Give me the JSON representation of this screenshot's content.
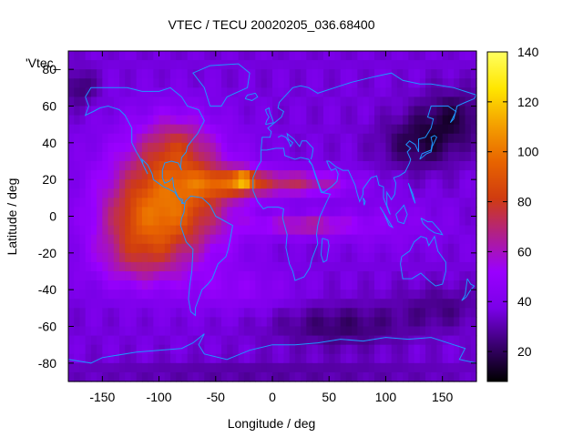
{
  "chart_data": {
    "type": "heatmap",
    "title": "VTEC / TECU 20020205_036.68400",
    "xlabel": "Longitude / deg",
    "ylabel": "Latitude / deg",
    "key_label": "'Vtec_",
    "xlim": [
      -180,
      180
    ],
    "ylim": [
      -90,
      90
    ],
    "xticks": [
      -150,
      -100,
      -50,
      0,
      50,
      100,
      150
    ],
    "yticks": [
      -80,
      -60,
      -40,
      -20,
      0,
      20,
      40,
      60,
      80
    ],
    "colorbar": {
      "range": [
        8,
        140
      ],
      "ticks": [
        20,
        40,
        60,
        80,
        100,
        120,
        140
      ]
    },
    "grid": false,
    "colormap": [
      "#000000",
      "#3a0070",
      "#7a00e8",
      "#9a00ff",
      "#b0208c",
      "#d03c10",
      "#e86400",
      "#f4a000",
      "#ffe600",
      "#ffff60"
    ],
    "coastline_color": "#1e96ff",
    "background_vtec": 36,
    "features": [
      {
        "lon": -90,
        "lat": 10,
        "slon": 55,
        "slat": 32,
        "amp": 56
      },
      {
        "lon": -115,
        "lat": -5,
        "slon": 40,
        "slat": 18,
        "amp": 18
      },
      {
        "lon": -85,
        "lat": 40,
        "slon": 30,
        "slat": 16,
        "amp": 20
      },
      {
        "lon": -40,
        "lat": 18,
        "slon": 35,
        "slat": 8,
        "amp": 28
      },
      {
        "lon": -25,
        "lat": 20,
        "slon": 8,
        "slat": 5,
        "amp": 42
      },
      {
        "lon": 20,
        "lat": 18,
        "slon": 50,
        "slat": 7,
        "amp": 32
      },
      {
        "lon": 30,
        "lat": -5,
        "slon": 42,
        "slat": 6,
        "amp": 28
      },
      {
        "lon": -120,
        "lat": -25,
        "slon": 40,
        "slat": 15,
        "amp": 20
      },
      {
        "lon": -30,
        "lat": -40,
        "slon": 50,
        "slat": 12,
        "amp": 10
      },
      {
        "lon": 100,
        "lat": -5,
        "slon": 50,
        "slat": 14,
        "amp": 8
      },
      {
        "lon": 130,
        "lat": 40,
        "slon": 35,
        "slat": 15,
        "amp": -18
      },
      {
        "lon": 160,
        "lat": 55,
        "slon": 30,
        "slat": 15,
        "amp": -16
      },
      {
        "lon": 60,
        "lat": -60,
        "slon": 60,
        "slat": 12,
        "amp": -14
      },
      {
        "lon": 150,
        "lat": -50,
        "slon": 40,
        "slat": 12,
        "amp": -10
      },
      {
        "lon": -170,
        "lat": 70,
        "slon": 15,
        "slat": 10,
        "amp": -14
      },
      {
        "lon": 0,
        "lat": -85,
        "slon": 200,
        "slat": 6,
        "amp": -8
      }
    ],
    "coastlines": [
      [
        [
          -165,
          65
        ],
        [
          -160,
          70
        ],
        [
          -140,
          70
        ],
        [
          -128,
          70
        ],
        [
          -115,
          68
        ],
        [
          -100,
          68
        ],
        [
          -90,
          70
        ],
        [
          -80,
          65
        ],
        [
          -75,
          60
        ],
        [
          -65,
          58
        ],
        [
          -60,
          52
        ],
        [
          -66,
          45
        ],
        [
          -70,
          42
        ],
        [
          -75,
          38
        ],
        [
          -76,
          35
        ],
        [
          -80,
          32
        ],
        [
          -81,
          27
        ],
        [
          -80,
          25
        ],
        [
          -83,
          29
        ],
        [
          -89,
          30
        ],
        [
          -95,
          29
        ],
        [
          -97,
          25
        ],
        [
          -97,
          21
        ],
        [
          -95,
          18
        ],
        [
          -91,
          19
        ],
        [
          -88,
          21
        ],
        [
          -87,
          16
        ],
        [
          -83,
          10
        ],
        [
          -79,
          9
        ],
        [
          -80,
          7
        ],
        [
          -78,
          7
        ],
        [
          -82,
          9
        ],
        [
          -86,
          13
        ],
        [
          -92,
          15
        ],
        [
          -96,
          16
        ],
        [
          -105,
          20
        ],
        [
          -106,
          23
        ],
        [
          -110,
          28
        ],
        [
          -115,
          31
        ],
        [
          -114,
          28
        ],
        [
          -110,
          23
        ],
        [
          -117,
          32
        ],
        [
          -120,
          35
        ],
        [
          -124,
          40
        ],
        [
          -124,
          48
        ],
        [
          -130,
          55
        ],
        [
          -135,
          58
        ],
        [
          -145,
          60
        ],
        [
          -152,
          59
        ],
        [
          -158,
          57
        ],
        [
          -165,
          55
        ],
        [
          -162,
          60
        ],
        [
          -165,
          65
        ]
      ],
      [
        [
          -77,
          8
        ],
        [
          -72,
          11
        ],
        [
          -62,
          10
        ],
        [
          -55,
          6
        ],
        [
          -50,
          0
        ],
        [
          -44,
          -2
        ],
        [
          -35,
          -5
        ],
        [
          -37,
          -12
        ],
        [
          -39,
          -18
        ],
        [
          -41,
          -22
        ],
        [
          -48,
          -26
        ],
        [
          -53,
          -34
        ],
        [
          -57,
          -37
        ],
        [
          -62,
          -40
        ],
        [
          -65,
          -45
        ],
        [
          -68,
          -50
        ],
        [
          -68,
          -54
        ],
        [
          -72,
          -52
        ],
        [
          -74,
          -45
        ],
        [
          -73,
          -38
        ],
        [
          -71,
          -30
        ],
        [
          -70,
          -18
        ],
        [
          -76,
          -14
        ],
        [
          -81,
          -5
        ],
        [
          -80,
          -1
        ],
        [
          -78,
          2
        ],
        [
          -77,
          8
        ]
      ],
      [
        [
          -55,
          60
        ],
        [
          -45,
          60
        ],
        [
          -40,
          65
        ],
        [
          -22,
          70
        ],
        [
          -20,
          78
        ],
        [
          -30,
          83
        ],
        [
          -55,
          82
        ],
        [
          -70,
          78
        ],
        [
          -60,
          70
        ],
        [
          -55,
          60
        ]
      ],
      [
        [
          -10,
          36
        ],
        [
          -9,
          43
        ],
        [
          -2,
          43
        ],
        [
          -1,
          46
        ],
        [
          -4,
          48
        ],
        [
          2,
          51
        ],
        [
          8,
          54
        ],
        [
          10,
          57
        ],
        [
          5,
          59
        ],
        [
          6,
          62
        ],
        [
          12,
          66
        ],
        [
          18,
          70
        ],
        [
          25,
          71
        ],
        [
          32,
          70
        ],
        [
          40,
          67
        ],
        [
          45,
          68
        ],
        [
          55,
          70
        ],
        [
          70,
          73
        ],
        [
          90,
          76
        ],
        [
          105,
          78
        ],
        [
          115,
          74
        ],
        [
          130,
          72
        ],
        [
          140,
          72
        ],
        [
          160,
          70
        ],
        [
          170,
          68
        ],
        [
          180,
          66
        ]
      ],
      [
        [
          -10,
          36
        ],
        [
          -5,
          36
        ],
        [
          3,
          37
        ],
        [
          10,
          37
        ],
        [
          11,
          33
        ],
        [
          20,
          31
        ],
        [
          25,
          32
        ],
        [
          32,
          31
        ],
        [
          35,
          28
        ],
        [
          38,
          22
        ],
        [
          43,
          13
        ],
        [
          51,
          12
        ],
        [
          48,
          8
        ],
        [
          42,
          0
        ],
        [
          40,
          -5
        ],
        [
          39,
          -10
        ],
        [
          40,
          -15
        ],
        [
          35,
          -23
        ],
        [
          33,
          -28
        ],
        [
          28,
          -33
        ],
        [
          20,
          -35
        ],
        [
          18,
          -30
        ],
        [
          15,
          -26
        ],
        [
          12,
          -17
        ],
        [
          13,
          -10
        ],
        [
          9,
          -1
        ],
        [
          10,
          4
        ],
        [
          5,
          5
        ],
        [
          -4,
          5
        ],
        [
          -8,
          4
        ],
        [
          -13,
          8
        ],
        [
          -17,
          14
        ],
        [
          -17,
          21
        ],
        [
          -13,
          27
        ],
        [
          -10,
          30
        ],
        [
          -10,
          36
        ]
      ],
      [
        [
          5,
          43
        ],
        [
          8,
          44
        ],
        [
          12,
          43
        ],
        [
          15,
          40
        ],
        [
          16,
          38
        ],
        [
          18,
          40
        ],
        [
          14,
          42
        ],
        [
          13,
          45
        ],
        [
          19,
          42
        ],
        [
          24,
          38
        ],
        [
          26,
          41
        ],
        [
          30,
          41
        ],
        [
          36,
          37
        ],
        [
          35,
          33
        ],
        [
          34,
          31
        ]
      ],
      [
        [
          32,
          30
        ],
        [
          35,
          28
        ],
        [
          43,
          14
        ],
        [
          45,
          13
        ],
        [
          52,
          16
        ],
        [
          57,
          19
        ],
        [
          58,
          23
        ],
        [
          56,
          26
        ],
        [
          52,
          25
        ],
        [
          50,
          27
        ],
        [
          48,
          30
        ],
        [
          50,
          30
        ],
        [
          56,
          27
        ],
        [
          62,
          25
        ],
        [
          67,
          25
        ],
        [
          70,
          21
        ],
        [
          73,
          17
        ],
        [
          75,
          12
        ],
        [
          77,
          8
        ],
        [
          80,
          12
        ],
        [
          80,
          15
        ],
        [
          87,
          21
        ],
        [
          92,
          22
        ],
        [
          94,
          17
        ],
        [
          98,
          16
        ],
        [
          98,
          10
        ],
        [
          103,
          2
        ],
        [
          104,
          1
        ],
        [
          101,
          6
        ],
        [
          101,
          13
        ],
        [
          105,
          9
        ],
        [
          108,
          12
        ],
        [
          109,
          18
        ],
        [
          107,
          21
        ],
        [
          112,
          22
        ],
        [
          117,
          24
        ],
        [
          121,
          29
        ],
        [
          122,
          31
        ],
        [
          119,
          35
        ],
        [
          122,
          37
        ],
        [
          118,
          39
        ],
        [
          121,
          41
        ],
        [
          126,
          39
        ],
        [
          129,
          35
        ],
        [
          129,
          42
        ],
        [
          135,
          43
        ],
        [
          140,
          48
        ],
        [
          142,
          53
        ],
        [
          137,
          54
        ],
        [
          140,
          60
        ],
        [
          155,
          60
        ],
        [
          162,
          57
        ],
        [
          157,
          51
        ],
        [
          160,
          53
        ],
        [
          163,
          60
        ],
        [
          170,
          62
        ],
        [
          178,
          64
        ],
        [
          180,
          66
        ]
      ],
      [
        [
          114,
          -22
        ],
        [
          113,
          -26
        ],
        [
          115,
          -34
        ],
        [
          123,
          -34
        ],
        [
          131,
          -31
        ],
        [
          138,
          -35
        ],
        [
          144,
          -38
        ],
        [
          150,
          -37
        ],
        [
          153,
          -30
        ],
        [
          153,
          -25
        ],
        [
          146,
          -19
        ],
        [
          143,
          -11
        ],
        [
          138,
          -16
        ],
        [
          136,
          -12
        ],
        [
          131,
          -11
        ],
        [
          125,
          -14
        ],
        [
          121,
          -19
        ],
        [
          114,
          -22
        ]
      ],
      [
        [
          95,
          5
        ],
        [
          100,
          0
        ],
        [
          106,
          -6
        ],
        [
          103,
          -5
        ],
        [
          98,
          2
        ],
        [
          95,
          5
        ]
      ],
      [
        [
          109,
          1
        ],
        [
          111,
          -3
        ],
        [
          116,
          -4
        ],
        [
          119,
          1
        ],
        [
          116,
          6
        ],
        [
          112,
          3
        ],
        [
          109,
          1
        ]
      ],
      [
        [
          131,
          -1
        ],
        [
          137,
          -3
        ],
        [
          141,
          -3
        ],
        [
          148,
          -8
        ],
        [
          150,
          -10
        ],
        [
          143,
          -9
        ],
        [
          138,
          -7
        ],
        [
          133,
          -4
        ],
        [
          131,
          -1
        ]
      ],
      [
        [
          130,
          31
        ],
        [
          132,
          34
        ],
        [
          136,
          35
        ],
        [
          140,
          36
        ],
        [
          141,
          40
        ],
        [
          140,
          43
        ],
        [
          143,
          44
        ],
        [
          145,
          43
        ],
        [
          141,
          38
        ],
        [
          140,
          35
        ],
        [
          136,
          34
        ],
        [
          130,
          31
        ]
      ],
      [
        [
          -6,
          50
        ],
        [
          -5,
          52
        ],
        [
          -3,
          54
        ],
        [
          -5,
          56
        ],
        [
          -6,
          58
        ],
        [
          -3,
          59
        ],
        [
          -2,
          56
        ],
        [
          0,
          53
        ],
        [
          1,
          51
        ],
        [
          -6,
          50
        ]
      ],
      [
        [
          -24,
          64
        ],
        [
          -22,
          66
        ],
        [
          -15,
          67
        ],
        [
          -13,
          65
        ],
        [
          -18,
          63
        ],
        [
          -24,
          64
        ]
      ],
      [
        [
          44,
          -12
        ],
        [
          49,
          -13
        ],
        [
          50,
          -16
        ],
        [
          48,
          -24
        ],
        [
          45,
          -25
        ],
        [
          43,
          -21
        ],
        [
          44,
          -12
        ]
      ],
      [
        [
          80,
          10
        ],
        [
          82,
          8
        ],
        [
          81,
          6
        ],
        [
          80,
          10
        ]
      ],
      [
        [
          172,
          -34
        ],
        [
          175,
          -37
        ],
        [
          178,
          -38
        ],
        [
          174,
          -41
        ],
        [
          171,
          -44
        ],
        [
          167,
          -46
        ],
        [
          170,
          -43
        ],
        [
          172,
          -34
        ]
      ],
      [
        [
          -180,
          -78
        ],
        [
          -160,
          -80
        ],
        [
          -150,
          -77
        ],
        [
          -140,
          -76
        ],
        [
          -120,
          -74
        ],
        [
          -100,
          -73
        ],
        [
          -80,
          -72
        ],
        [
          -70,
          -69
        ],
        [
          -60,
          -64
        ],
        [
          -65,
          -70
        ],
        [
          -60,
          -75
        ],
        [
          -40,
          -78
        ],
        [
          -20,
          -73
        ],
        [
          0,
          -70
        ],
        [
          20,
          -70
        ],
        [
          40,
          -69
        ],
        [
          60,
          -67
        ],
        [
          80,
          -68
        ],
        [
          100,
          -66
        ],
        [
          120,
          -67
        ],
        [
          140,
          -66
        ],
        [
          160,
          -70
        ],
        [
          170,
          -72
        ],
        [
          165,
          -78
        ],
        [
          180,
          -80
        ]
      ],
      [
        [
          120,
          18
        ],
        [
          122,
          14
        ],
        [
          124,
          10
        ],
        [
          126,
          7
        ],
        [
          124,
          12
        ],
        [
          120,
          18
        ]
      ]
    ]
  }
}
